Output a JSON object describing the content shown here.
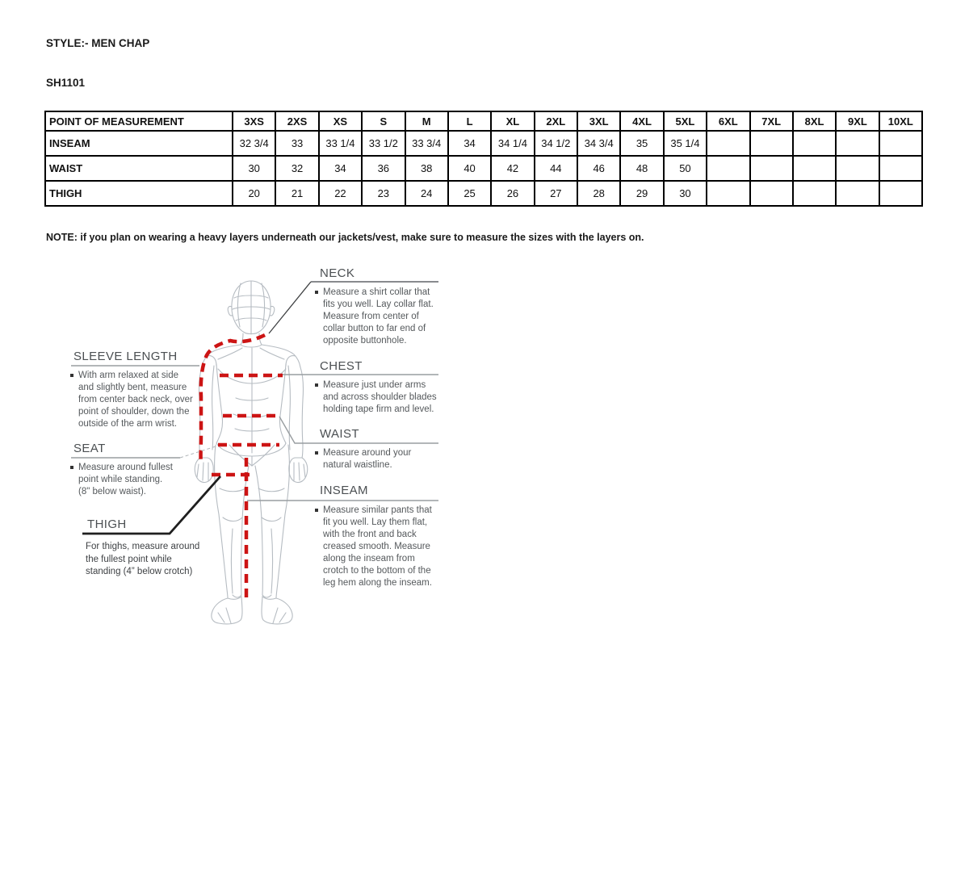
{
  "page": {
    "style_label": "STYLE:- MEN CHAP",
    "style_code": "SH1101",
    "note": "NOTE: if you plan on wearing a heavy layers underneath our jackets/vest, make sure to measure the sizes with the layers on."
  },
  "size_chart": {
    "header": [
      "POINT OF MEASUREMENT",
      "3XS",
      "2XS",
      "XS",
      "S",
      "M",
      "L",
      "XL",
      "2XL",
      "3XL",
      "4XL",
      "5XL",
      "6XL",
      "7XL",
      "8XL",
      "9XL",
      "10XL"
    ],
    "rows": [
      {
        "label": "INSEAM",
        "values": [
          "32 3/4",
          "33",
          "33 1/4",
          "33 1/2",
          "33 3/4",
          "34",
          "34 1/4",
          "34 1/2",
          "34 3/4",
          "35",
          "35 1/4",
          "",
          "",
          "",
          "",
          ""
        ]
      },
      {
        "label": "WAIST",
        "values": [
          "30",
          "32",
          "34",
          "36",
          "38",
          "40",
          "42",
          "44",
          "46",
          "48",
          "50",
          "",
          "",
          "",
          "",
          ""
        ]
      },
      {
        "label": "THIGH",
        "values": [
          "20",
          "21",
          "22",
          "23",
          "24",
          "25",
          "26",
          "27",
          "28",
          "29",
          "30",
          "",
          "",
          "",
          "",
          ""
        ]
      }
    ]
  },
  "diagram": {
    "colors": {
      "measure_line": "#cc1414",
      "figure_outline": "#b6bcc2",
      "connector": "#989da0",
      "thigh_connector": "#1f1f1f"
    },
    "sections": {
      "neck": {
        "title": "NECK",
        "description": "Measure a shirt collar that\nfits you well. Lay collar flat.\nMeasure from center of\ncollar button to far end of\nopposite buttonhole."
      },
      "chest": {
        "title": "CHEST",
        "description": "Measure just under arms\nand across shoulder blades\nholding tape firm and level."
      },
      "waist": {
        "title": "WAIST",
        "description": "Measure around your\nnatural waistline."
      },
      "inseam": {
        "title": "INSEAM",
        "description": "Measure similar pants that\nfit you well. Lay them flat,\nwith the front and back\ncreased smooth. Measure\nalong the inseam from\ncrotch to the bottom of the\nleg hem along the inseam."
      },
      "sleeve_length": {
        "title": "SLEEVE LENGTH",
        "description": "With arm relaxed at side\nand slightly bent, measure\nfrom center back neck, over\npoint of shoulder, down the\noutside of the arm wrist."
      },
      "seat": {
        "title": "SEAT",
        "description": "Measure around fullest\npoint while standing.\n(8\" below waist)."
      },
      "thigh": {
        "title": "THIGH",
        "description": "For thighs, measure around\nthe fullest point while\nstanding (4” below crotch)"
      }
    }
  }
}
